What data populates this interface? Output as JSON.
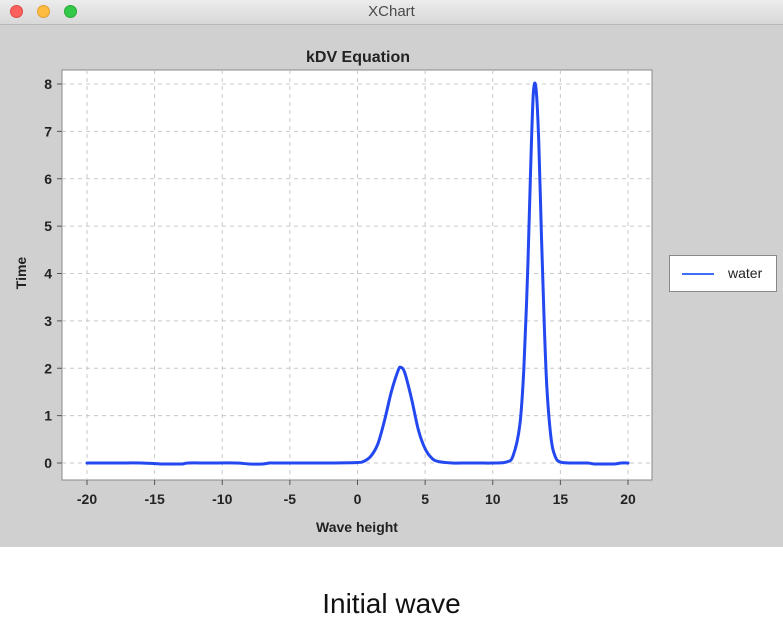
{
  "window": {
    "title": "XChart"
  },
  "caption": "Initial wave",
  "colors": {
    "series": "#2348f0",
    "legend_line": "#3e6df7",
    "grid": "#c8c8c8",
    "plot_bg": "#ffffff",
    "window_bg": "#d0d0d0"
  },
  "chart_data": {
    "type": "line",
    "title": "kDV Equation",
    "xlabel": "Wave height",
    "ylabel": "Time",
    "xlim": [
      -20,
      20
    ],
    "ylim": [
      0,
      8
    ],
    "xticks": [
      "-20",
      "-15",
      "-10",
      "-5",
      "0",
      "5",
      "10",
      "15",
      "20"
    ],
    "yticks": [
      "0",
      "1",
      "2",
      "3",
      "4",
      "5",
      "6",
      "7",
      "8"
    ],
    "grid": true,
    "legend_position": "outside-right",
    "series": [
      {
        "name": "water",
        "color": "#2348f0",
        "x": [
          -20,
          -18,
          -16,
          -14.5,
          -14,
          -13,
          -12.5,
          -11,
          -9,
          -8,
          -7,
          -6.5,
          -6,
          -4,
          -2,
          0,
          0.5,
          1,
          1.5,
          2,
          2.5,
          3,
          3.2,
          3.5,
          4,
          4.5,
          5,
          5.5,
          6,
          7,
          8,
          9,
          10,
          11,
          11.5,
          12,
          12.3,
          12.6,
          12.8,
          13,
          13.2,
          13.4,
          13.6,
          13.8,
          14,
          14.3,
          14.6,
          15,
          16,
          17,
          17.5,
          18,
          19,
          19.5,
          20
        ],
        "y": [
          0.0,
          0.0,
          0.0,
          -0.02,
          -0.02,
          -0.02,
          0.0,
          0.0,
          0.0,
          -0.02,
          -0.02,
          0.0,
          0.0,
          0.0,
          0.0,
          0.01,
          0.04,
          0.15,
          0.4,
          0.9,
          1.5,
          1.95,
          2.02,
          1.9,
          1.35,
          0.7,
          0.3,
          0.1,
          0.03,
          0.0,
          0.0,
          0.0,
          0.0,
          0.02,
          0.15,
          0.8,
          2.0,
          4.2,
          6.2,
          7.8,
          7.9,
          6.8,
          4.8,
          3.0,
          1.6,
          0.55,
          0.15,
          0.02,
          0.0,
          0.0,
          -0.02,
          -0.02,
          -0.02,
          0.0,
          0.0
        ]
      }
    ]
  }
}
